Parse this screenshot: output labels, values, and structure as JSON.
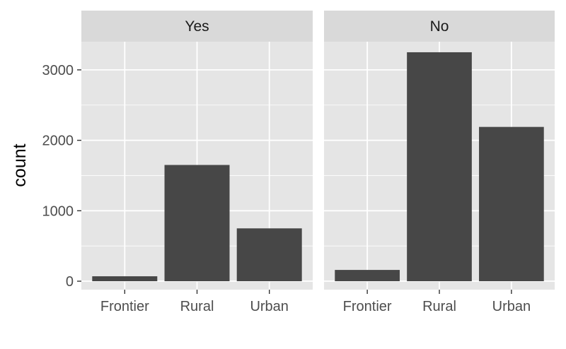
{
  "chart_data": {
    "type": "bar",
    "ylabel": "count",
    "xlabel": "",
    "ylim": [
      -120,
      3400
    ],
    "yticks": [
      0,
      1000,
      2000,
      3000
    ],
    "categories": [
      "Frontier",
      "Rural",
      "Urban"
    ],
    "facets": [
      {
        "label": "Yes",
        "values": [
          70,
          1650,
          750
        ]
      },
      {
        "label": "No",
        "values": [
          160,
          3250,
          2190
        ]
      }
    ],
    "colors": {
      "bar": "#474747",
      "panel": "#e5e5e5",
      "strip": "#d9d9d9",
      "grid": "#ffffff",
      "tick": "#333333"
    }
  }
}
